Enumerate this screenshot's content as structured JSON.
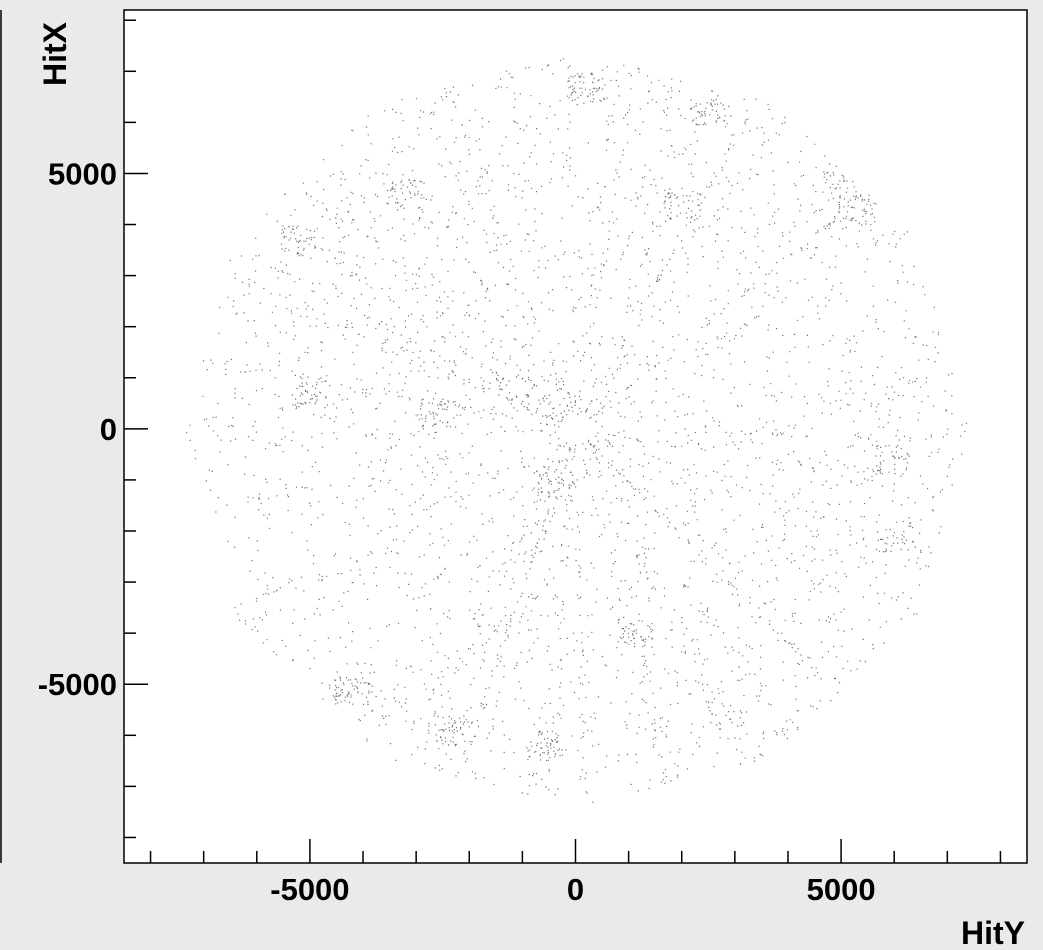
{
  "chart_data": {
    "type": "scatter",
    "title": "",
    "xlabel": "HitY",
    "ylabel": "HitX",
    "xlim": [
      -8500,
      8500
    ],
    "ylim": [
      -8500,
      8200
    ],
    "x_ticks": [
      -5000,
      0,
      5000
    ],
    "y_ticks": [
      -5000,
      0,
      5000
    ],
    "grid": false,
    "colors": {
      "background": "#eaeaea",
      "frame": "#000000",
      "points": "#000000"
    },
    "description_of_series": "",
    "series": [
      {
        "region": {
          "shape": "dodecagon",
          "outer_radius": 7400,
          "inner_hole_radius": 300,
          "center": [
            0,
            0
          ]
        },
        "hotspots": [
          [
            200,
            6700
          ],
          [
            2500,
            6200
          ],
          [
            5000,
            4800
          ],
          [
            5300,
            4300
          ],
          [
            -3200,
            4600
          ],
          [
            -5200,
            3700
          ],
          [
            -5000,
            700
          ],
          [
            -2600,
            300
          ],
          [
            5900,
            -600
          ],
          [
            6000,
            -2100
          ],
          [
            -4200,
            -5100
          ],
          [
            -2300,
            -5900
          ],
          [
            -600,
            -6200
          ],
          [
            1100,
            -4000
          ],
          [
            -400,
            -1100
          ],
          [
            2000,
            4400
          ]
        ]
      }
    ]
  }
}
